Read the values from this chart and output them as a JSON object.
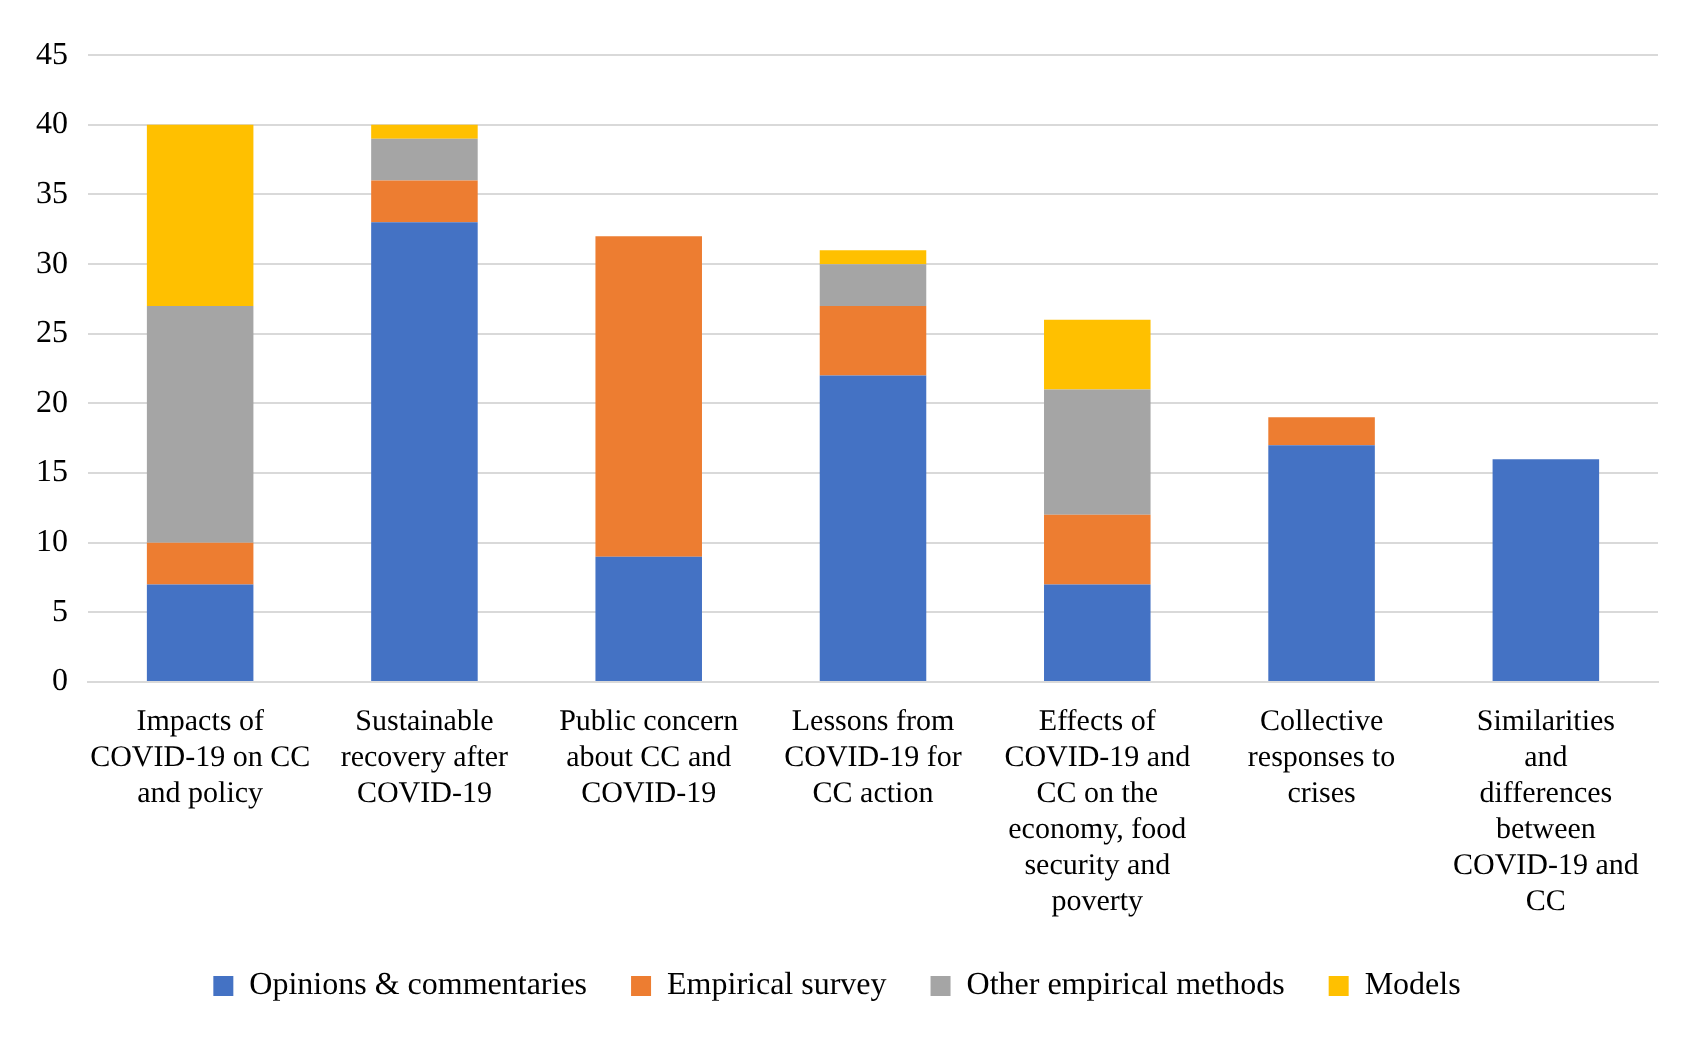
{
  "chart_data": {
    "type": "bar",
    "stacked": true,
    "categories": [
      "Impacts of COVID-19 on CC and policy",
      "Sustainable recovery after COVID-19",
      "Public concern about CC and COVID-19",
      "Lessons from COVID-19 for CC action",
      "Effects of COVID-19 and CC on the economy, food security and poverty",
      "Collective responses to crises",
      "Similarities and differences between COVID-19 and CC"
    ],
    "series": [
      {
        "name": "Opinions & commentaries",
        "color": "#4472c4",
        "values": [
          7,
          33,
          9,
          22,
          7,
          17,
          16
        ]
      },
      {
        "name": "Empirical survey",
        "color": "#ed7d31",
        "values": [
          3,
          3,
          23,
          5,
          5,
          2,
          0
        ]
      },
      {
        "name": "Other empirical methods",
        "color": "#a5a5a5",
        "values": [
          17,
          3,
          0,
          3,
          9,
          0,
          0
        ]
      },
      {
        "name": "Models",
        "color": "#ffc000",
        "values": [
          13,
          1,
          0,
          1,
          5,
          0,
          0
        ]
      }
    ],
    "ylim": [
      0,
      45
    ],
    "yticks": [
      0,
      5,
      10,
      15,
      20,
      25,
      30,
      35,
      40,
      45
    ],
    "grid": "y",
    "legend": "bottom"
  }
}
